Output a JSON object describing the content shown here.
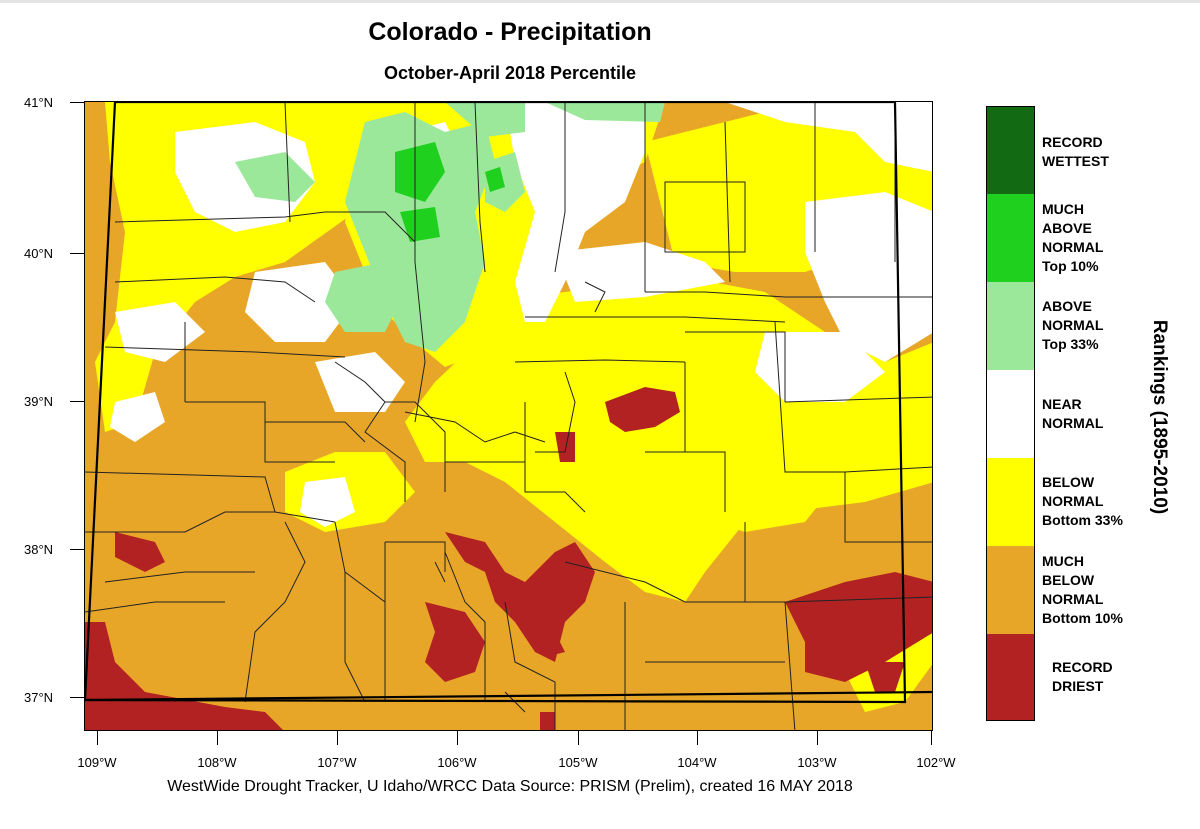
{
  "title": "Colorado - Precipitation",
  "subtitle": "October-April 2018 Percentile",
  "credit": "WestWide Drought Tracker, U Idaho/WRCC Data Source: PRISM (Prelim), created 16 MAY 2018",
  "legend_title": "Rankings (1895-2010)",
  "lat_labels": [
    "41°N",
    "40°N",
    "39°N",
    "38°N",
    "37°N"
  ],
  "lon_labels": [
    "109°W",
    "108°W",
    "107°W",
    "106°W",
    "105°W",
    "104°W",
    "103°W",
    "102°W"
  ],
  "colors": {
    "record_wettest": "#126b12",
    "much_above": "#1fd01f",
    "above": "#9be89b",
    "near": "#ffffff",
    "below": "#ffff00",
    "much_below": "#e8a628",
    "record_driest": "#b22222"
  },
  "categories": [
    {
      "lines": [
        "RECORD",
        "WETTEST"
      ],
      "color": "#126b12"
    },
    {
      "lines": [
        "MUCH",
        "ABOVE",
        "NORMAL",
        "Top 10%"
      ],
      "color": "#1fd01f"
    },
    {
      "lines": [
        "ABOVE",
        "NORMAL",
        "Top 33%"
      ],
      "color": "#9be89b"
    },
    {
      "lines": [
        "NEAR",
        "NORMAL"
      ],
      "color": "#ffffff"
    },
    {
      "lines": [
        "BELOW",
        "NORMAL",
        "Bottom 33%"
      ],
      "color": "#ffff00"
    },
    {
      "lines": [
        "MUCH",
        "BELOW",
        "NORMAL",
        "Bottom 10%"
      ],
      "color": "#e8a628"
    },
    {
      "lines": [
        "RECORD",
        "DRIEST"
      ],
      "color": "#b22222"
    }
  ]
}
